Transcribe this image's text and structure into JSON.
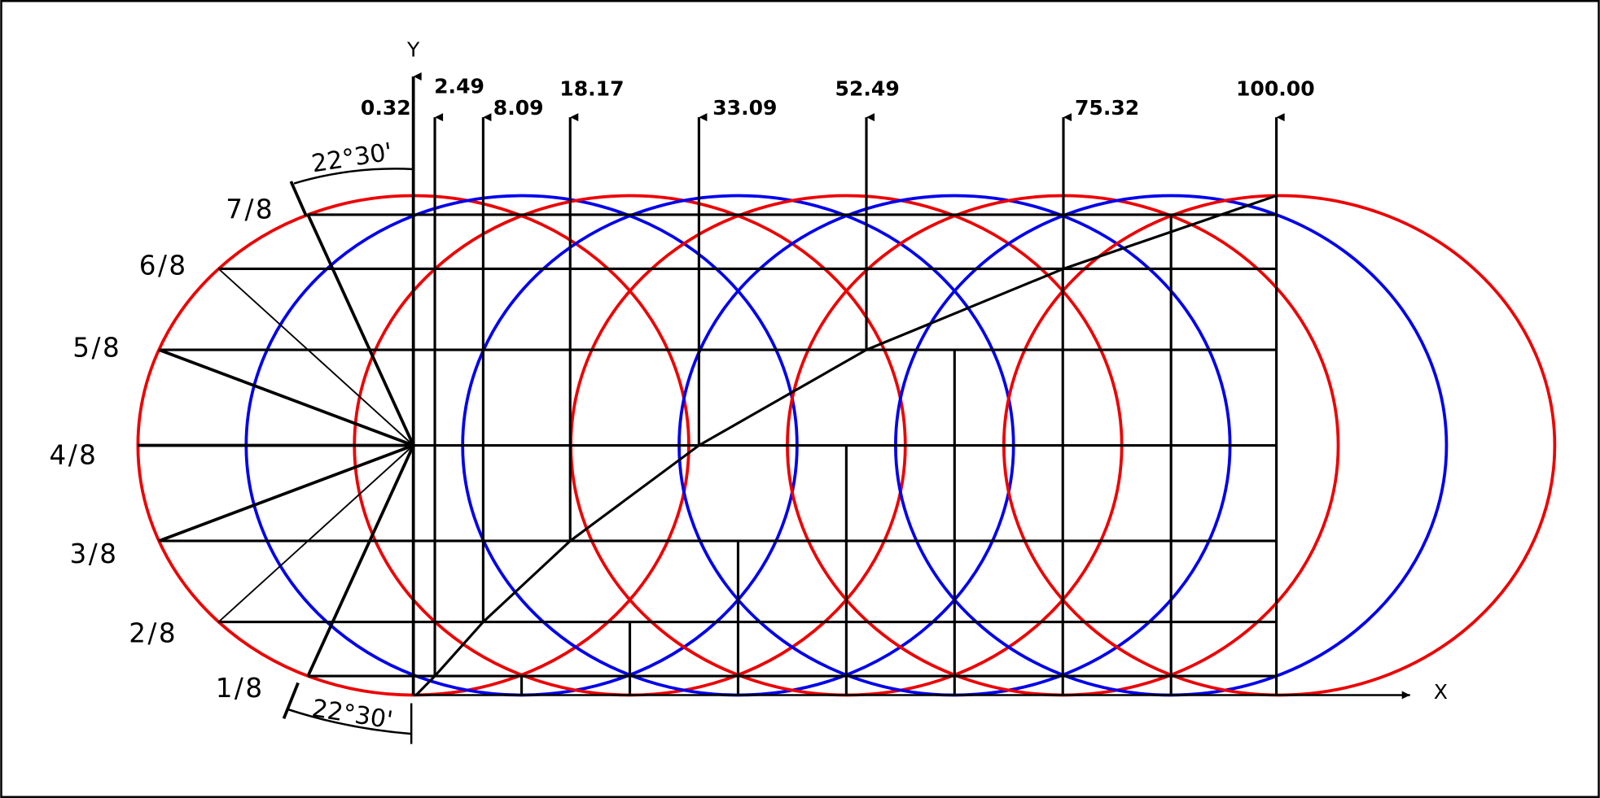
{
  "diagram": {
    "axes": {
      "x": "X",
      "y": "Y"
    },
    "stations": [
      "0.32",
      "2.49",
      "8.09",
      "18.17",
      "33.09",
      "52.49",
      "75.32",
      "100.00"
    ],
    "levels": [
      "1/8",
      "2/8",
      "3/8",
      "4/8",
      "5/8",
      "6/8",
      "7/8"
    ],
    "angle_labels": [
      "22°30'",
      "22°30'"
    ]
  }
}
